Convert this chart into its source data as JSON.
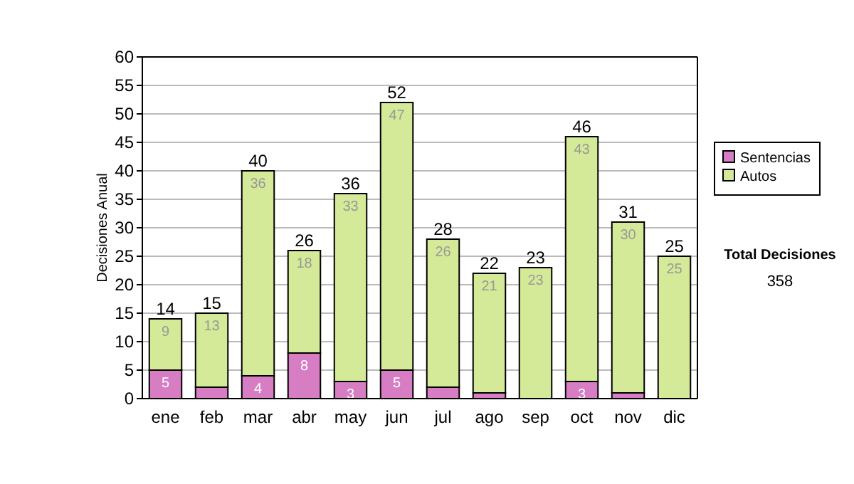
{
  "chart_data": {
    "type": "bar",
    "stacked": true,
    "ylabel": "Decisiones Anual",
    "categories": [
      "ene",
      "feb",
      "mar",
      "abr",
      "may",
      "jun",
      "jul",
      "ago",
      "sep",
      "oct",
      "nov",
      "dic"
    ],
    "series": [
      {
        "name": "Sentencias",
        "color": "#d77dc4",
        "values": [
          5,
          2,
          4,
          8,
          3,
          5,
          2,
          1,
          0,
          3,
          1,
          0
        ],
        "value_labels": [
          "5",
          null,
          "4",
          "8",
          "3",
          "5",
          null,
          null,
          null,
          "3",
          null,
          null
        ]
      },
      {
        "name": "Autos",
        "color": "#d4ea98",
        "values": [
          9,
          13,
          36,
          18,
          33,
          47,
          26,
          21,
          23,
          43,
          30,
          25
        ],
        "value_labels": [
          "9",
          "13",
          "36",
          "18",
          "33",
          "47",
          "26",
          "21",
          "23",
          "43",
          "30",
          "25"
        ]
      }
    ],
    "totals": [
      "14",
      "15",
      "40",
      "26",
      "36",
      "52",
      "28",
      "22",
      "23",
      "46",
      "31",
      "25"
    ],
    "ylim": [
      0,
      60
    ],
    "yticks": [
      0,
      5,
      10,
      15,
      20,
      25,
      30,
      35,
      40,
      45,
      50,
      55,
      60
    ],
    "grid": "y",
    "legend": "right",
    "annotations": [
      "Total Decisiones",
      "358"
    ]
  }
}
